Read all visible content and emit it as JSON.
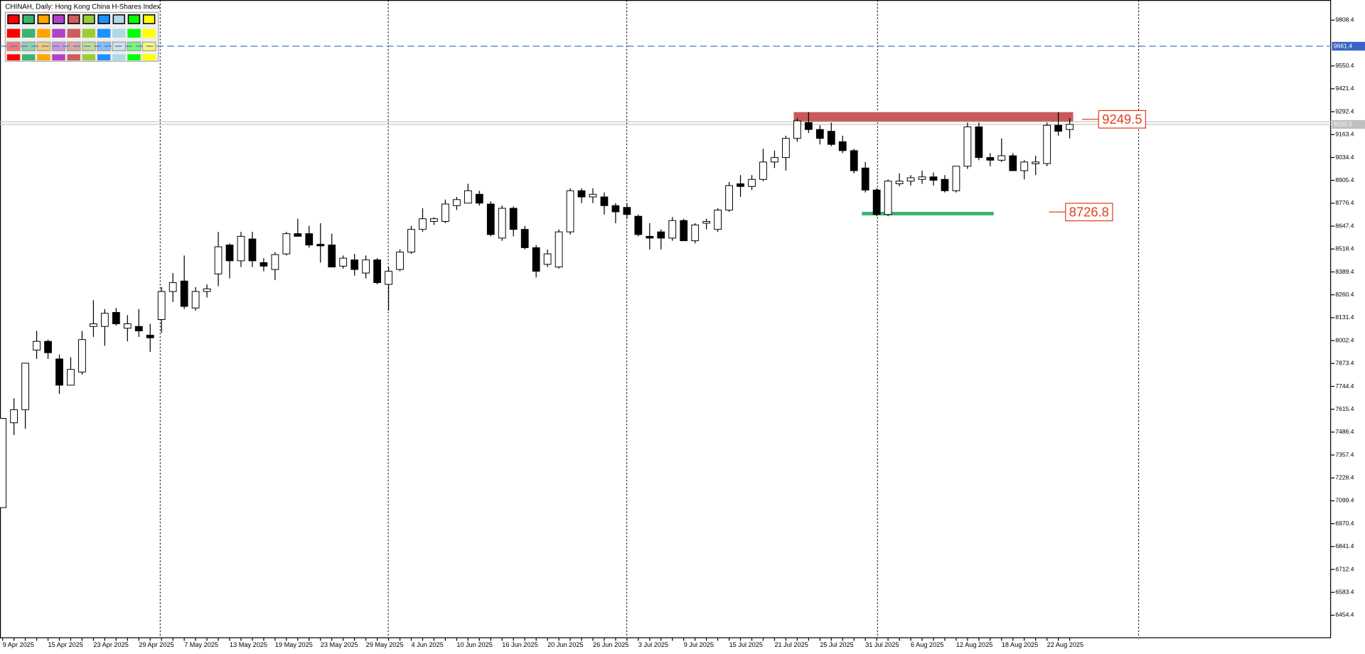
{
  "chart_data": {
    "type": "candlestick",
    "title": "CHINAH, Daily:  Hong Kong China H-Shares Index",
    "categories": [
      "9 Apr 2025",
      null,
      null,
      null,
      "15 Apr 2025",
      null,
      null,
      null,
      "23 Apr 2025",
      null,
      null,
      null,
      "29 Apr 2025",
      null,
      null,
      null,
      "7 May 2025",
      null,
      null,
      null,
      "13 May 2025",
      null,
      null,
      null,
      "19 May 2025",
      null,
      null,
      null,
      "23 May 2025",
      null,
      null,
      null,
      "29 May 2025",
      null,
      null,
      null,
      "4 Jun 2025",
      null,
      null,
      null,
      "10 Jun 2025",
      null,
      null,
      null,
      "16 Jun 2025",
      null,
      null,
      null,
      "20 Jun 2025",
      null,
      null,
      null,
      "26 Jun 2025",
      null,
      null,
      null,
      "3 Jul 2025",
      null,
      null,
      null,
      "9 Jul 2025",
      null,
      null,
      null,
      "15 Jul 2025",
      null,
      null,
      null,
      "21 Jul 2025",
      null,
      null,
      null,
      "25 Jul 2025",
      null,
      null,
      null,
      "31 Jul 2025",
      null,
      null,
      null,
      "6 Aug 2025",
      null,
      null,
      null,
      "12 Aug 2025",
      null,
      null,
      null,
      "18 Aug 2025",
      null,
      null,
      null,
      "22 Aug 2025",
      null,
      null
    ],
    "open": [
      7061,
      7539,
      7613,
      7949,
      7998,
      7899,
      7751,
      7825,
      8082,
      8082,
      8161,
      8072,
      8082,
      8033,
      8121,
      8279,
      8338,
      8186,
      8279,
      8378,
      8541,
      8452,
      8575,
      8442,
      8403,
      8491,
      8605,
      8605,
      8545,
      8541,
      8422,
      8457,
      8383,
      8457,
      8319,
      8403,
      8501,
      8629,
      8674,
      8674,
      8763,
      8777,
      8827,
      8772,
      8580,
      8748,
      8629,
      8526,
      8432,
      8417,
      8615,
      8847,
      8812,
      8812,
      8763,
      8753,
      8703,
      8590,
      8615,
      8580,
      8679,
      8565,
      8664,
      8629,
      8738,
      8886,
      8871,
      8911,
      9009,
      9034,
      9142,
      9231,
      9192,
      9182,
      9123,
      9073,
      8975,
      8851,
      8713,
      8886,
      8901,
      8911,
      8925,
      8911,
      8847,
      8985,
      9207,
      9034,
      9019,
      9044,
      8960,
      8999,
      9000,
      9216,
      9192
    ],
    "high": [
      7564,
      7677,
      7875,
      8057,
      8008,
      7924,
      7909,
      8057,
      8230,
      8180,
      8186,
      8146,
      8180,
      8097,
      8304,
      8383,
      8482,
      8304,
      8319,
      8615,
      8550,
      8615,
      8615,
      8467,
      8501,
      8615,
      8689,
      8649,
      8664,
      8605,
      8482,
      8491,
      8482,
      8467,
      8417,
      8516,
      8649,
      8748,
      8698,
      8797,
      8812,
      8886,
      8847,
      8787,
      8763,
      8758,
      8649,
      8541,
      8516,
      8629,
      8861,
      8861,
      8861,
      8837,
      8777,
      8777,
      8713,
      8664,
      8629,
      8698,
      8689,
      8664,
      8689,
      8748,
      8896,
      8935,
      8935,
      9083,
      9073,
      9157,
      9256,
      9290,
      9216,
      9231,
      9157,
      9083,
      9009,
      8861,
      8911,
      8945,
      8935,
      8960,
      8950,
      8935,
      8985,
      9231,
      9231,
      9059,
      9142,
      9059,
      9019,
      9044,
      9231,
      9290,
      9256
    ],
    "low": [
      7061,
      7470,
      7505,
      7899,
      7899,
      7702,
      7751,
      7810,
      8023,
      7973,
      8087,
      7998,
      8023,
      7939,
      8047,
      8220,
      8180,
      8171,
      8245,
      8309,
      8353,
      8417,
      8417,
      8393,
      8343,
      8482,
      8590,
      8526,
      8442,
      8417,
      8408,
      8368,
      8353,
      8319,
      8171,
      8393,
      8491,
      8615,
      8654,
      8664,
      8738,
      8777,
      8763,
      8590,
      8565,
      8590,
      8516,
      8358,
      8417,
      8408,
      8600,
      8777,
      8777,
      8713,
      8664,
      8689,
      8590,
      8516,
      8516,
      8565,
      8565,
      8550,
      8629,
      8615,
      8728,
      8812,
      8851,
      8901,
      8975,
      8960,
      9123,
      9172,
      9108,
      9098,
      9059,
      8945,
      8837,
      8703,
      8703,
      8871,
      8876,
      8886,
      8876,
      8837,
      8837,
      8970,
      9019,
      8985,
      9009,
      8960,
      8911,
      8935,
      8985,
      9157,
      9142
    ],
    "close": [
      7564,
      7613,
      7875,
      7998,
      7934,
      7751,
      7840,
      8008,
      8097,
      8156,
      8097,
      8097,
      8057,
      8018,
      8279,
      8329,
      8195,
      8279,
      8294,
      8531,
      8452,
      8590,
      8452,
      8422,
      8487,
      8605,
      8590,
      8541,
      8536,
      8417,
      8467,
      8403,
      8457,
      8329,
      8393,
      8501,
      8629,
      8689,
      8689,
      8772,
      8797,
      8847,
      8777,
      8600,
      8748,
      8629,
      8526,
      8393,
      8491,
      8615,
      8847,
      8812,
      8827,
      8763,
      8728,
      8713,
      8600,
      8580,
      8580,
      8679,
      8565,
      8654,
      8674,
      8738,
      8876,
      8871,
      8911,
      9009,
      9034,
      9142,
      9241,
      9192,
      9142,
      9108,
      9073,
      8960,
      8851,
      8713,
      8901,
      8901,
      8920,
      8925,
      8906,
      8847,
      8985,
      9207,
      9034,
      9019,
      9044,
      8960,
      9009,
      9009,
      9216,
      9182,
      9220.5
    ],
    "ylim": [
      6325,
      9921.9
    ],
    "yticks": [
      6454.4,
      6583.4,
      6712.4,
      6841.4,
      6970.4,
      7099.4,
      7228.4,
      7357.4,
      7486.4,
      7615.4,
      7744.4,
      7873.4,
      8002.4,
      8131.4,
      8260.4,
      8389.4,
      8518.4,
      8647.4,
      8776.4,
      8905.4,
      9034.4,
      9163.4,
      9292.4,
      9421.4,
      9550.4,
      9808.4
    ],
    "current_price": 9220.5,
    "alert_level": 9661.4,
    "zones": [
      {
        "low": 9236,
        "high": 9290,
        "from": 70,
        "to": 94,
        "color": "#c85a5a"
      },
      {
        "low": 8708,
        "high": 8728,
        "from": 76,
        "to": 87,
        "color": "#3cb371"
      }
    ],
    "annotations": [
      9249.5,
      8726.8
    ],
    "annotation_color": "#e0401a"
  }
}
